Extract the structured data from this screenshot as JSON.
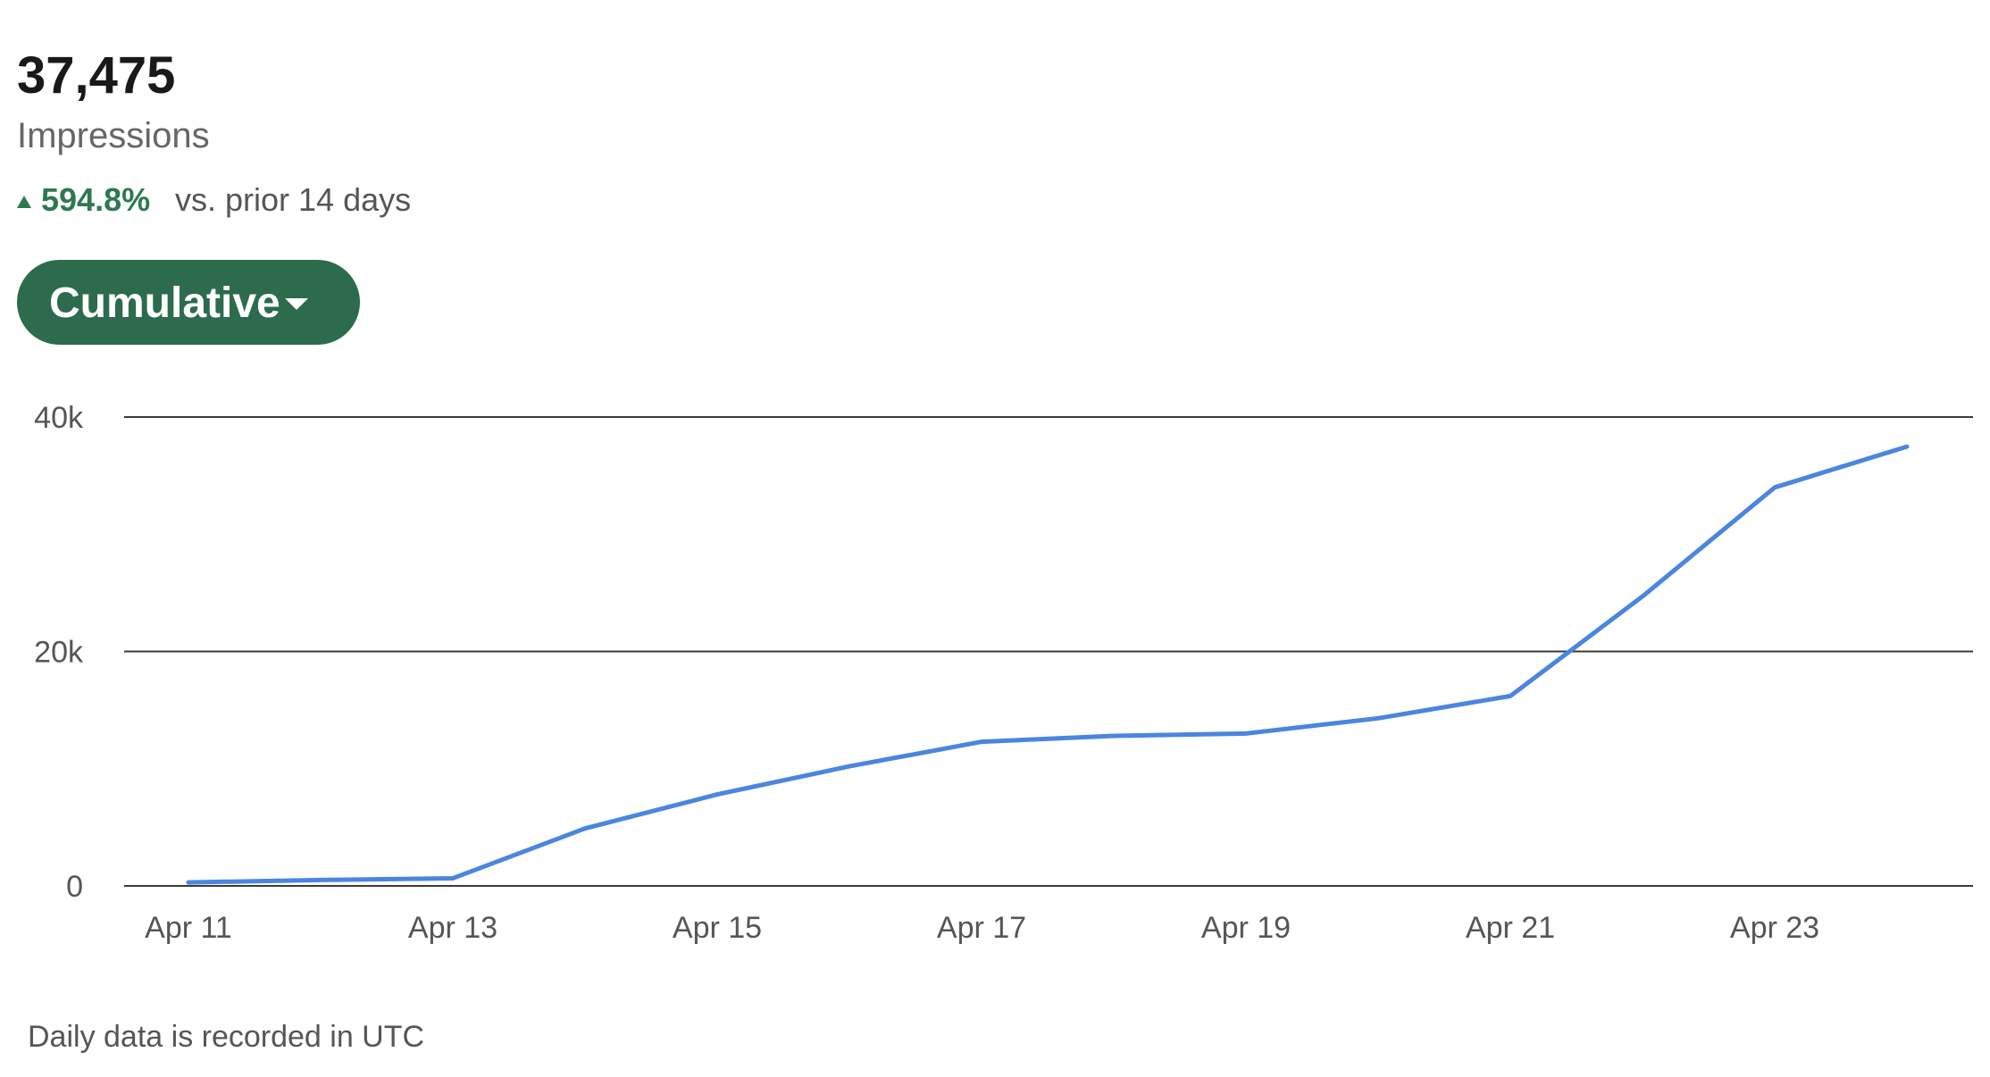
{
  "header": {
    "value": "37,475",
    "label": "Impressions",
    "change": "594.8%",
    "comparison": "vs. prior 14 days"
  },
  "button": {
    "label": "Cumulative"
  },
  "footer": "Daily data is recorded in UTC",
  "chart_data": {
    "type": "line",
    "categories": [
      "Apr 11",
      null,
      "Apr 13",
      null,
      "Apr 15",
      null,
      "Apr 17",
      null,
      "Apr 19",
      null,
      "Apr 21",
      null,
      "Apr 23",
      null
    ],
    "values": [
      300,
      500,
      650,
      4900,
      7800,
      10200,
      12300,
      12800,
      13000,
      14300,
      16200,
      24700,
      34000,
      37475
    ],
    "color": "#4a86e0",
    "ylim": [
      0,
      40000
    ],
    "yticks": [
      0,
      {
        "value": 20000,
        "label": "20k"
      },
      {
        "value": 40000,
        "label": "40k"
      }
    ],
    "grid": true
  }
}
